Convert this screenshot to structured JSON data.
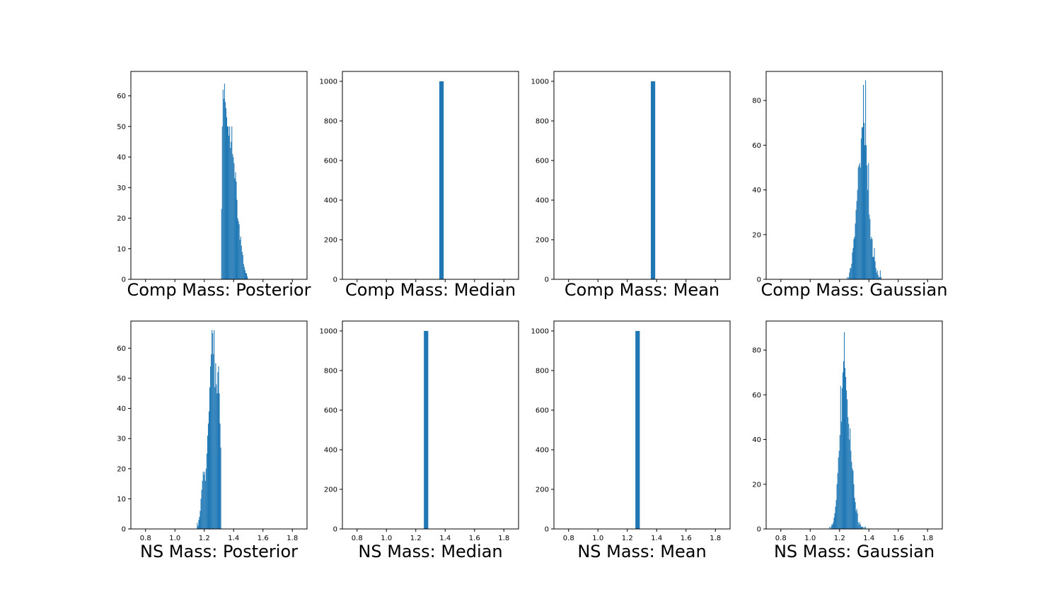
{
  "chart_data": [
    {
      "type": "bar",
      "title": "Comp Mass: Posterior",
      "xlim": [
        0.7,
        1.9
      ],
      "ylim": [
        0,
        68
      ],
      "yticks": [
        0,
        10,
        20,
        30,
        40,
        50,
        60
      ],
      "xticks": [],
      "bar_color": "#1f77b4",
      "bins": {
        "x": [
          1.318,
          1.323,
          1.328,
          1.333,
          1.338,
          1.343,
          1.348,
          1.353,
          1.358,
          1.363,
          1.368,
          1.373,
          1.378,
          1.383,
          1.388,
          1.393,
          1.398,
          1.403,
          1.408,
          1.413,
          1.418,
          1.423,
          1.428,
          1.433,
          1.438,
          1.443,
          1.448,
          1.453,
          1.458,
          1.463,
          1.468,
          1.473,
          1.478,
          1.483,
          1.488,
          1.493
        ],
        "values": [
          23,
          50,
          62,
          59,
          64,
          58,
          56,
          53,
          50,
          50,
          47,
          50,
          43,
          45,
          50,
          41,
          40,
          38,
          33,
          35,
          32,
          26,
          20,
          19,
          18,
          13,
          14,
          11,
          9,
          8,
          5,
          4,
          3,
          2,
          2,
          1
        ],
        "width": 0.005
      }
    },
    {
      "type": "bar",
      "title": "Comp Mass: Median",
      "xlim": [
        0.7,
        1.9
      ],
      "ylim": [
        0,
        1050
      ],
      "yticks": [
        0,
        200,
        400,
        600,
        800,
        1000
      ],
      "xticks": [],
      "bar_color": "#1f77b4",
      "bins": {
        "x": [
          1.375
        ],
        "values": [
          1000
        ],
        "width": 0.03
      }
    },
    {
      "type": "bar",
      "title": "Comp Mass: Mean",
      "xlim": [
        0.7,
        1.9
      ],
      "ylim": [
        0,
        1050
      ],
      "yticks": [
        0,
        200,
        400,
        600,
        800,
        1000
      ],
      "xticks": [],
      "bar_color": "#1f77b4",
      "bins": {
        "x": [
          1.375
        ],
        "values": [
          1000
        ],
        "width": 0.03
      }
    },
    {
      "type": "bar",
      "title": "Comp Mass: Gaussian",
      "xlim": [
        0.7,
        1.9
      ],
      "ylim": [
        0,
        93
      ],
      "yticks": [
        0,
        20,
        40,
        60,
        80
      ],
      "xticks": [],
      "bar_color": "#1f77b4",
      "bins": {
        "x": [
          1.2525,
          1.2575,
          1.2625,
          1.2675,
          1.2725,
          1.2775,
          1.2825,
          1.2875,
          1.2925,
          1.2975,
          1.3025,
          1.3075,
          1.3125,
          1.3175,
          1.3225,
          1.3275,
          1.3325,
          1.3375,
          1.3425,
          1.3475,
          1.3525,
          1.3575,
          1.3625,
          1.3675,
          1.3725,
          1.3775,
          1.3825,
          1.3875,
          1.3925,
          1.3975,
          1.4025,
          1.4075,
          1.4125,
          1.4175,
          1.4225,
          1.4275,
          1.4325,
          1.4375,
          1.4425,
          1.4475,
          1.4525,
          1.4575,
          1.4625,
          1.4675,
          1.4725,
          1.4775,
          1.4825
        ],
        "values": [
          1,
          0,
          1,
          3,
          5,
          5,
          7,
          12,
          14,
          18,
          19,
          25,
          31,
          35,
          40,
          50,
          51,
          52,
          50,
          63,
          68,
          68,
          87,
          70,
          60,
          89,
          60,
          51,
          40,
          52,
          29,
          27,
          18,
          19,
          18,
          10,
          10,
          14,
          8,
          5,
          3,
          4,
          2,
          1,
          1,
          4,
          1
        ],
        "width": 0.005
      }
    },
    {
      "type": "bar",
      "title": "NS Mass: Posterior",
      "xlim": [
        0.7,
        1.9
      ],
      "ylim": [
        0,
        69
      ],
      "yticks": [
        0,
        10,
        20,
        30,
        40,
        50,
        60
      ],
      "xticks": [
        "0.8",
        "1.0",
        "1.2",
        "1.4",
        "1.6",
        "1.8"
      ],
      "xtick_values": [
        0.8,
        1.0,
        1.2,
        1.4,
        1.6,
        1.8
      ],
      "bar_color": "#1f77b4",
      "bins": {
        "x": [
          1.1525,
          1.1575,
          1.1625,
          1.1675,
          1.1725,
          1.1775,
          1.1825,
          1.1875,
          1.1925,
          1.1975,
          1.2025,
          1.2075,
          1.2125,
          1.2175,
          1.2225,
          1.2275,
          1.2325,
          1.2375,
          1.2425,
          1.2475,
          1.2525,
          1.2575,
          1.2625,
          1.2675,
          1.2725,
          1.2775,
          1.2825,
          1.2875,
          1.2925,
          1.2975,
          1.3025,
          1.3075,
          1.3125
        ],
        "values": [
          2,
          1,
          3,
          4,
          6,
          10,
          13,
          16,
          19,
          18,
          19,
          16,
          20,
          25,
          31,
          35,
          39,
          47,
          54,
          58,
          66,
          65,
          58,
          66,
          47,
          55,
          48,
          45,
          52,
          54,
          45,
          35,
          27
        ],
        "width": 0.005
      }
    },
    {
      "type": "bar",
      "title": "NS Mass: Median",
      "xlim": [
        0.7,
        1.9
      ],
      "ylim": [
        0,
        1050
      ],
      "yticks": [
        0,
        200,
        400,
        600,
        800,
        1000
      ],
      "xticks": [
        "0.8",
        "1.0",
        "1.2",
        "1.4",
        "1.6",
        "1.8"
      ],
      "xtick_values": [
        0.8,
        1.0,
        1.2,
        1.4,
        1.6,
        1.8
      ],
      "bar_color": "#1f77b4",
      "bins": {
        "x": [
          1.27
        ],
        "values": [
          1000
        ],
        "width": 0.03
      }
    },
    {
      "type": "bar",
      "title": "NS Mass: Mean",
      "xlim": [
        0.7,
        1.9
      ],
      "ylim": [
        0,
        1050
      ],
      "yticks": [
        0,
        200,
        400,
        600,
        800,
        1000
      ],
      "xticks": [
        "0.8",
        "1.0",
        "1.2",
        "1.4",
        "1.6",
        "1.8"
      ],
      "xtick_values": [
        0.8,
        1.0,
        1.2,
        1.4,
        1.6,
        1.8
      ],
      "bar_color": "#1f77b4",
      "bins": {
        "x": [
          1.27
        ],
        "values": [
          1000
        ],
        "width": 0.03
      }
    },
    {
      "type": "bar",
      "title": "NS Mass: Gaussian",
      "xlim": [
        0.7,
        1.9
      ],
      "ylim": [
        0,
        93
      ],
      "yticks": [
        0,
        20,
        40,
        60,
        80
      ],
      "xticks": [
        "0.8",
        "1.0",
        "1.2",
        "1.4",
        "1.6",
        "1.8"
      ],
      "xtick_values": [
        0.8,
        1.0,
        1.2,
        1.4,
        1.6,
        1.8
      ],
      "bar_color": "#1f77b4",
      "bins": {
        "x": [
          1.1325,
          1.1375,
          1.1425,
          1.1475,
          1.1525,
          1.1575,
          1.1625,
          1.1675,
          1.1725,
          1.1775,
          1.1825,
          1.1875,
          1.1925,
          1.1975,
          1.2025,
          1.2075,
          1.2125,
          1.2175,
          1.2225,
          1.2275,
          1.2325,
          1.2375,
          1.2425,
          1.2475,
          1.2525,
          1.2575,
          1.2625,
          1.2675,
          1.2725,
          1.2775,
          1.2825,
          1.2875,
          1.2925,
          1.2975,
          1.3025,
          1.3075,
          1.3125,
          1.3175,
          1.3225,
          1.3275,
          1.3325,
          1.3375,
          1.3425,
          1.3475,
          1.3525,
          1.3575,
          1.3625,
          1.3675,
          1.3725,
          1.3775
        ],
        "values": [
          1,
          0,
          1,
          2,
          2,
          3,
          5,
          7,
          10,
          13,
          20,
          25,
          32,
          35,
          42,
          64,
          48,
          63,
          70,
          75,
          88,
          72,
          68,
          62,
          58,
          50,
          47,
          40,
          45,
          35,
          30,
          27,
          26,
          20,
          14,
          12,
          8,
          9,
          7,
          3,
          2,
          3,
          2,
          1,
          1,
          1,
          0,
          1,
          0,
          1
        ],
        "width": 0.005
      }
    }
  ]
}
